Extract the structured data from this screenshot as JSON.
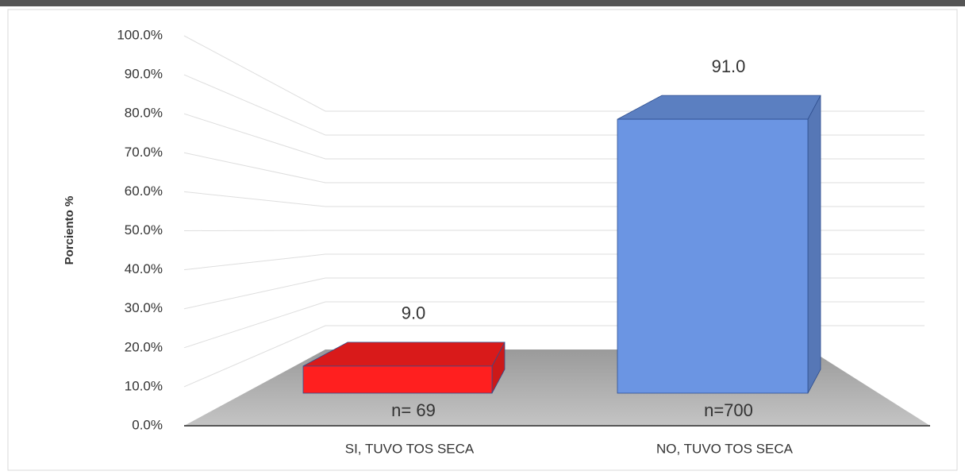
{
  "chart_data": {
    "type": "bar3d",
    "y_label": "Porciento %",
    "categories": [
      "SI, TUVO TOS SECA",
      "NO, TUVO TOS SECA"
    ],
    "values": [
      9.0,
      91.0
    ],
    "value_labels": [
      "9.0",
      "91.0"
    ],
    "annotations": [
      "n= 69",
      "n=700"
    ],
    "colors": [
      "#ff1f1f",
      "#6b95e3"
    ],
    "ylim": [
      0,
      100
    ],
    "yticks": [
      {
        "value": 0,
        "label": "0.0%"
      },
      {
        "value": 10,
        "label": "10.0%"
      },
      {
        "value": 20,
        "label": "20.0%"
      },
      {
        "value": 30,
        "label": "30.0%"
      },
      {
        "value": 40,
        "label": "40.0%"
      },
      {
        "value": 50,
        "label": "50.0%"
      },
      {
        "value": 60,
        "label": "60.0%"
      },
      {
        "value": 70,
        "label": "70.0%"
      },
      {
        "value": 80,
        "label": "80.0%"
      },
      {
        "value": 90,
        "label": "90.0%"
      },
      {
        "value": 100,
        "label": "100.0%"
      }
    ],
    "grid": true
  }
}
